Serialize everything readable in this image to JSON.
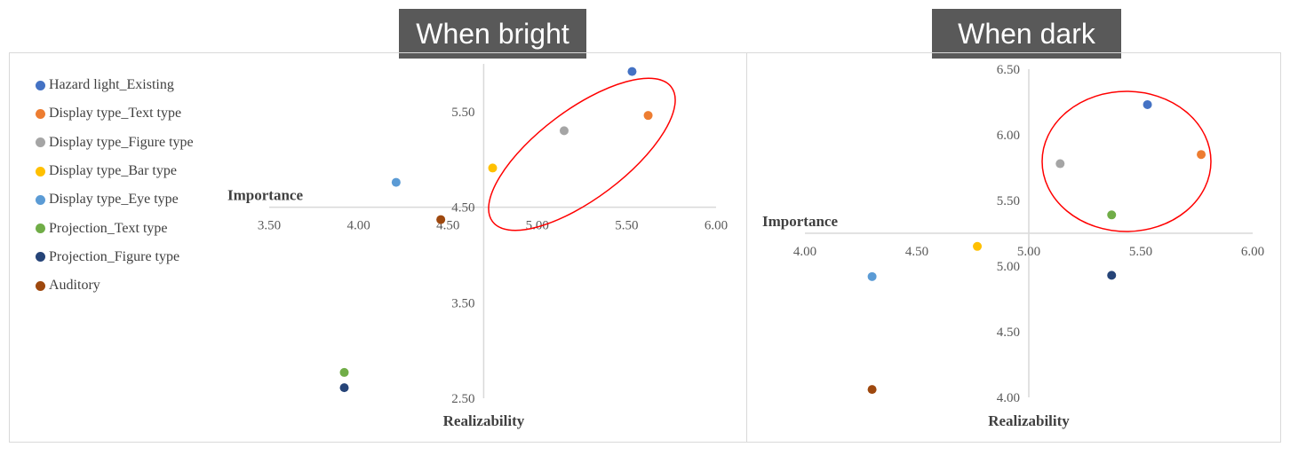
{
  "panels": {
    "bright_title": "When bright",
    "dark_title": "When dark"
  },
  "legend": [
    {
      "label": "Hazard light_Existing",
      "color": "#4472c4"
    },
    {
      "label": "Display type_Text type",
      "color": "#ed7d31"
    },
    {
      "label": "Display type_Figure type",
      "color": "#a5a5a5"
    },
    {
      "label": "Display type_Bar type",
      "color": "#ffc000"
    },
    {
      "label": "Display type_Eye type",
      "color": "#5b9bd5"
    },
    {
      "label": "Projection_Text type",
      "color": "#70ad47"
    },
    {
      "label": "Projection_Figure type",
      "color": "#264478"
    },
    {
      "label": "Auditory",
      "color": "#9e480e"
    }
  ],
  "highlight_color": "#ff0000",
  "chart_data": [
    {
      "type": "scatter",
      "title": "When bright",
      "xlabel": "Realizability",
      "ylabel": "Importance",
      "xlim": [
        3.5,
        6.0
      ],
      "ylim": [
        2.5,
        6.0
      ],
      "x_ticks": [
        "3.50",
        "4.00",
        "4.50",
        "5.00",
        "5.50",
        "6.00"
      ],
      "y_ticks": [
        "2.50",
        "3.50",
        "4.50",
        "5.50"
      ],
      "x_axis_crosses_y_at": 4.5,
      "y_axis_crosses_x_at": 4.7,
      "grid": false,
      "legend_position": "left",
      "highlight": "ellipse",
      "series": [
        {
          "name": "Hazard light_Existing",
          "x": 5.53,
          "y": 5.92
        },
        {
          "name": "Display type_Text type",
          "x": 5.62,
          "y": 5.46
        },
        {
          "name": "Display type_Figure type",
          "x": 5.15,
          "y": 5.3
        },
        {
          "name": "Display type_Bar type",
          "x": 4.75,
          "y": 4.91
        },
        {
          "name": "Display type_Eye type",
          "x": 4.21,
          "y": 4.76
        },
        {
          "name": "Projection_Text type",
          "x": 3.92,
          "y": 2.77
        },
        {
          "name": "Projection_Figure type",
          "x": 3.92,
          "y": 2.61
        },
        {
          "name": "Auditory",
          "x": 4.46,
          "y": 4.37
        }
      ]
    },
    {
      "type": "scatter",
      "title": "When dark",
      "xlabel": "Realizability",
      "ylabel": "Importance",
      "xlim": [
        4.0,
        6.0
      ],
      "ylim": [
        4.0,
        6.5
      ],
      "x_ticks": [
        "4.00",
        "4.50",
        "5.00",
        "5.50",
        "6.00"
      ],
      "y_ticks": [
        "4.00",
        "4.50",
        "5.00",
        "5.50",
        "6.00",
        "6.50"
      ],
      "x_axis_crosses_y_at": 5.25,
      "y_axis_crosses_x_at": 5.0,
      "grid": false,
      "highlight": "ellipse",
      "series": [
        {
          "name": "Hazard light_Existing",
          "x": 5.53,
          "y": 6.23
        },
        {
          "name": "Display type_Text type",
          "x": 5.77,
          "y": 5.85
        },
        {
          "name": "Display type_Figure type",
          "x": 5.14,
          "y": 5.78
        },
        {
          "name": "Display type_Bar type",
          "x": 4.77,
          "y": 5.15
        },
        {
          "name": "Display type_Eye type",
          "x": 4.3,
          "y": 4.92
        },
        {
          "name": "Projection_Text type",
          "x": 5.37,
          "y": 5.39
        },
        {
          "name": "Projection_Figure type",
          "x": 5.37,
          "y": 4.93
        },
        {
          "name": "Auditory",
          "x": 4.3,
          "y": 4.06
        }
      ]
    }
  ]
}
